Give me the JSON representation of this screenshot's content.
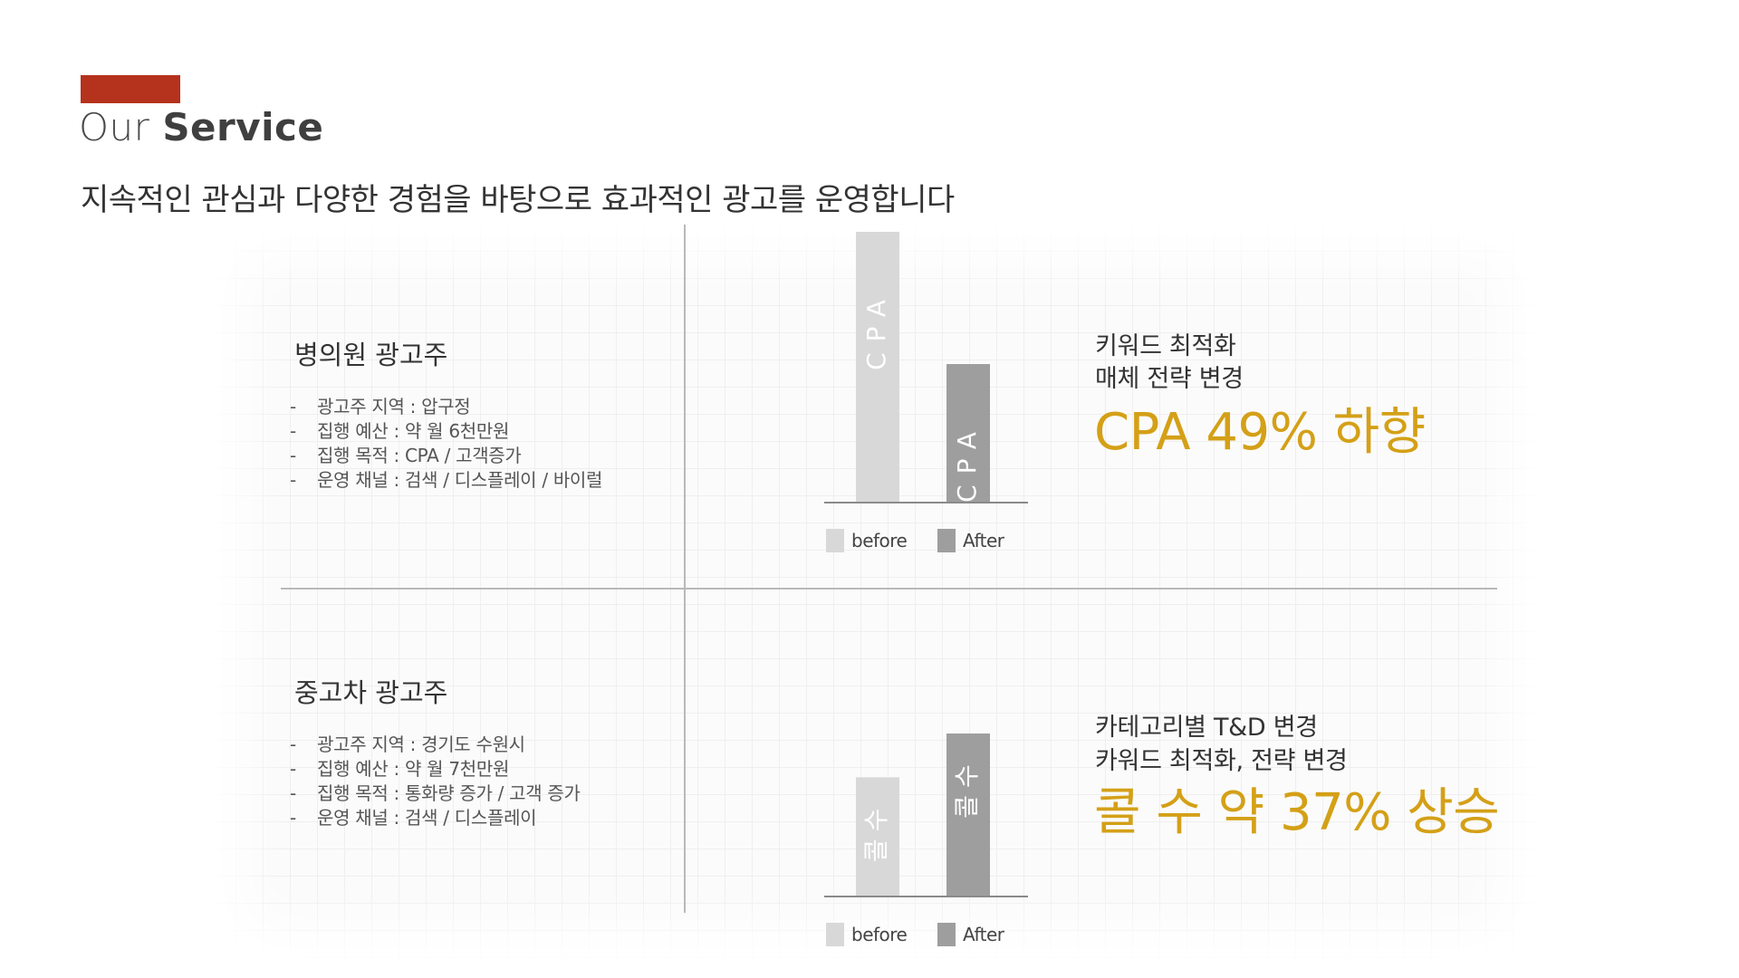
{
  "header": {
    "title_light": "Our",
    "title_bold": "Service",
    "subtitle": "지속적인 관심과 다양한 경험을 바탕으로 효과적인 광고를 운영합니다"
  },
  "colors": {
    "accent_bar": "#b5321c",
    "highlight_text": "#d4a017",
    "before_bar": "#d8d8d8",
    "after_bar": "#9e9e9e"
  },
  "cases": [
    {
      "client": "병의원 광고주",
      "details": [
        "광고주 지역 : 압구정",
        "집행 예산 : 약 월 6천만원",
        "집행 목적 : CPA / 고객증가",
        "운영 채널 : 검색 / 디스플레이 / 바이럴"
      ],
      "result_lines": [
        "키워드 최적화",
        "매체 전략 변경"
      ],
      "result_highlight": "CPA 49% 하향"
    },
    {
      "client": "중고차 광고주",
      "details": [
        "광고주 지역 : 경기도 수원시",
        "집행 예산 : 약 월 7천만원",
        "집행 목적 : 통화량 증가 / 고객 증가",
        "운영 채널 : 검색 / 디스플레이"
      ],
      "result_lines": [
        "카테고리별 T&D 변경",
        "카워드 최적화, 전략 변경"
      ],
      "result_highlight": "콜 수 약 37% 상승"
    }
  ],
  "chart_data": [
    {
      "type": "bar",
      "categories": [
        "before",
        "After"
      ],
      "bar_labels": [
        "CPA",
        "CPA"
      ],
      "values": [
        100,
        51
      ],
      "legend": [
        "before",
        "After"
      ]
    },
    {
      "type": "bar",
      "categories": [
        "before",
        "After"
      ],
      "bar_labels": [
        "콜수",
        "콜수"
      ],
      "values": [
        100,
        137
      ],
      "legend": [
        "before",
        "After"
      ]
    }
  ]
}
